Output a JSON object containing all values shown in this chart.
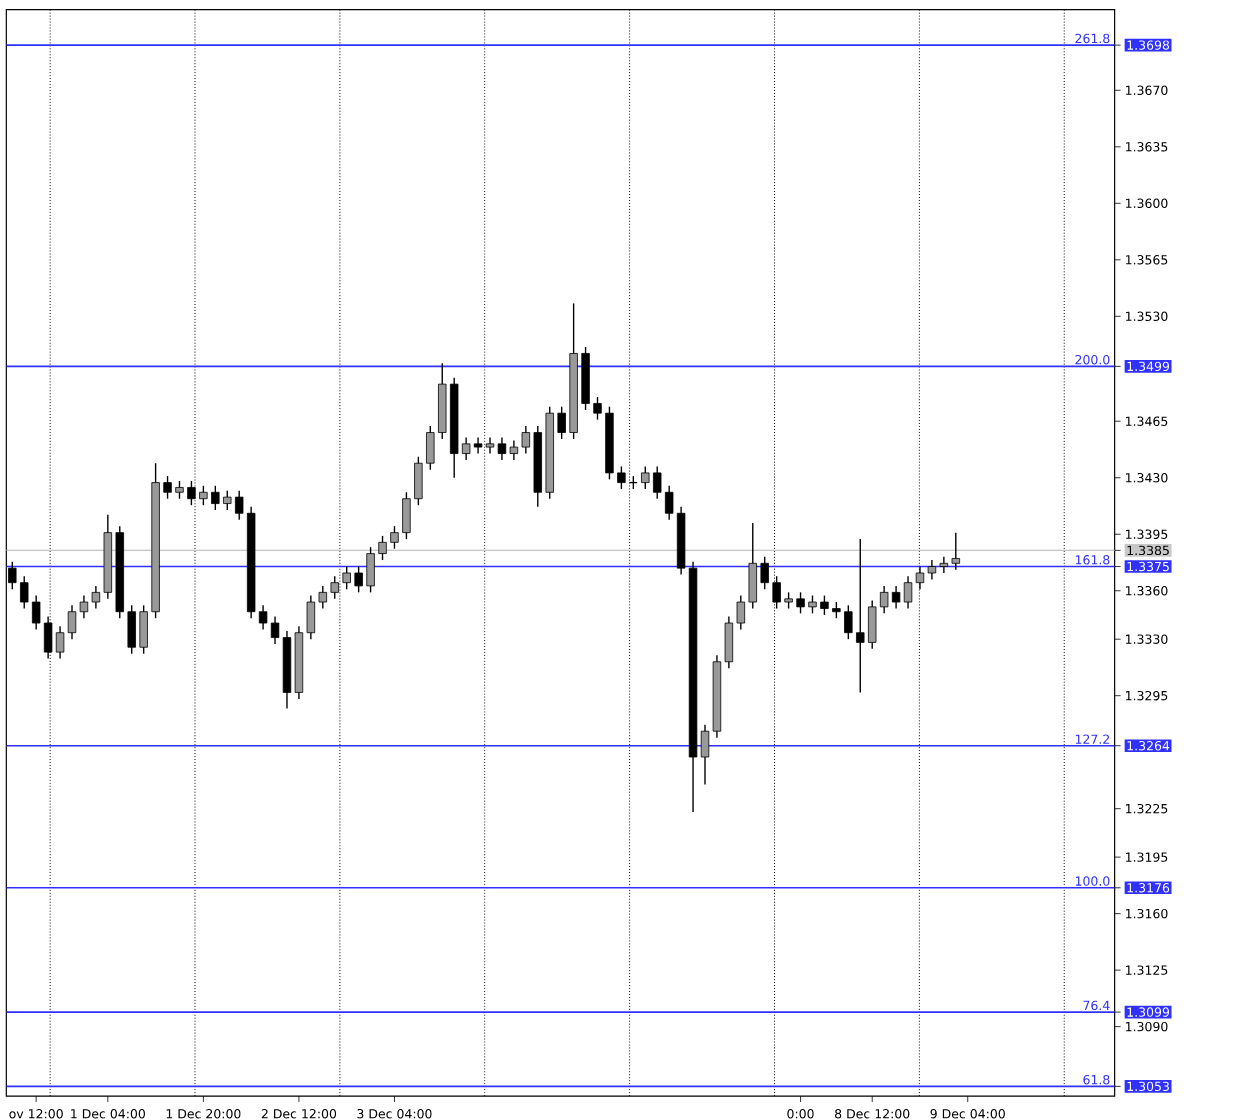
{
  "chart_data": {
    "type": "candlestick",
    "color": "#000000",
    "categories": [
      null,
      null,
      "ov 12:00",
      null,
      null,
      null,
      null,
      null,
      "1 Dec 04:00",
      null,
      null,
      null,
      null,
      null,
      null,
      null,
      "1 Dec 20:00",
      null,
      null,
      null,
      null,
      null,
      null,
      null,
      "2 Dec 12:00",
      null,
      null,
      null,
      null,
      null,
      null,
      null,
      "3 Dec 04:00",
      null,
      null,
      null,
      null,
      null,
      null,
      null,
      null,
      null,
      null,
      null,
      null,
      null,
      null,
      null,
      null,
      null,
      null,
      null,
      null,
      null,
      null,
      null,
      null,
      null,
      null,
      null,
      null,
      null,
      null,
      null,
      null,
      null,
      "0:00",
      null,
      null,
      null,
      null,
      null,
      "8 Dec 12:00",
      null,
      null,
      null,
      null,
      null,
      null,
      null,
      "9 Dec 04:00",
      null,
      null,
      null,
      null,
      null,
      null,
      null,
      null,
      null,
      null,
      null,
      null
    ],
    "ohlc": [
      [
        1.3374,
        1.3378,
        1.3361,
        1.3365
      ],
      [
        1.3365,
        1.3369,
        1.3349,
        1.3353
      ],
      [
        1.3353,
        1.3357,
        1.3336,
        1.334
      ],
      [
        1.334,
        1.3344,
        1.3318,
        1.3322
      ],
      [
        1.3322,
        1.3338,
        1.3318,
        1.3334
      ],
      [
        1.3334,
        1.3351,
        1.333,
        1.3347
      ],
      [
        1.3347,
        1.3357,
        1.3343,
        1.3353
      ],
      [
        1.3353,
        1.3363,
        1.3349,
        1.3359
      ],
      [
        1.3359,
        1.3407,
        1.3355,
        1.3396
      ],
      [
        1.3396,
        1.34,
        1.3343,
        1.3347
      ],
      [
        1.3347,
        1.3351,
        1.3321,
        1.3325
      ],
      [
        1.3325,
        1.3351,
        1.3321,
        1.3347
      ],
      [
        1.3347,
        1.3439,
        1.3343,
        1.3427
      ],
      [
        1.3427,
        1.3431,
        1.3417,
        1.3421
      ],
      [
        1.3421,
        1.3428,
        1.3417,
        1.3424
      ],
      [
        1.3424,
        1.3428,
        1.3413,
        1.3417
      ],
      [
        1.3417,
        1.3425,
        1.3413,
        1.3421
      ],
      [
        1.3421,
        1.3425,
        1.341,
        1.3414
      ],
      [
        1.3414,
        1.3422,
        1.341,
        1.3418
      ],
      [
        1.3418,
        1.3422,
        1.3404,
        1.3408
      ],
      [
        1.3408,
        1.3412,
        1.3343,
        1.3347
      ],
      [
        1.3347,
        1.3351,
        1.3336,
        1.334
      ],
      [
        1.334,
        1.3344,
        1.3327,
        1.3331
      ],
      [
        1.3331,
        1.3335,
        1.3287,
        1.3297
      ],
      [
        1.3297,
        1.3338,
        1.3293,
        1.3334
      ],
      [
        1.3334,
        1.3357,
        1.333,
        1.3353
      ],
      [
        1.3353,
        1.3363,
        1.3349,
        1.3359
      ],
      [
        1.3359,
        1.3369,
        1.3355,
        1.3365
      ],
      [
        1.3365,
        1.3375,
        1.3361,
        1.3371
      ],
      [
        1.3371,
        1.3375,
        1.3359,
        1.3363
      ],
      [
        1.3363,
        1.3387,
        1.3359,
        1.3383
      ],
      [
        1.3383,
        1.3394,
        1.3379,
        1.339
      ],
      [
        1.339,
        1.34,
        1.3386,
        1.3396
      ],
      [
        1.3396,
        1.3421,
        1.3392,
        1.3417
      ],
      [
        1.3417,
        1.3443,
        1.3413,
        1.3439
      ],
      [
        1.3439,
        1.3462,
        1.3435,
        1.3458
      ],
      [
        1.3458,
        1.3501,
        1.3454,
        1.3488
      ],
      [
        1.3488,
        1.3492,
        1.343,
        1.3445
      ],
      [
        1.3445,
        1.3455,
        1.3441,
        1.3451
      ],
      [
        1.3451,
        1.3455,
        1.3445,
        1.3449
      ],
      [
        1.3449,
        1.3455,
        1.3445,
        1.3451
      ],
      [
        1.3451,
        1.3455,
        1.3441,
        1.3445
      ],
      [
        1.3445,
        1.3453,
        1.3441,
        1.3449
      ],
      [
        1.3449,
        1.3462,
        1.3445,
        1.3458
      ],
      [
        1.3458,
        1.3462,
        1.3412,
        1.3421
      ],
      [
        1.3421,
        1.3474,
        1.3417,
        1.347
      ],
      [
        1.347,
        1.3474,
        1.3454,
        1.3458
      ],
      [
        1.3458,
        1.3538,
        1.3454,
        1.3507
      ],
      [
        1.3507,
        1.3511,
        1.3472,
        1.3476
      ],
      [
        1.3476,
        1.348,
        1.3466,
        1.347
      ],
      [
        1.347,
        1.3474,
        1.3429,
        1.3433
      ],
      [
        1.3433,
        1.3437,
        1.3423,
        1.3427
      ],
      [
        1.3427,
        1.3431,
        1.3423,
        1.3427
      ],
      [
        1.3427,
        1.3437,
        1.3423,
        1.3433
      ],
      [
        1.3433,
        1.3437,
        1.3417,
        1.3421
      ],
      [
        1.3421,
        1.3425,
        1.3404,
        1.3408
      ],
      [
        1.3408,
        1.3412,
        1.337,
        1.3374
      ],
      [
        1.3374,
        1.3378,
        1.3223,
        1.3257
      ],
      [
        1.3257,
        1.3277,
        1.324,
        1.3273
      ],
      [
        1.3273,
        1.332,
        1.3269,
        1.3316
      ],
      [
        1.3316,
        1.3344,
        1.3312,
        1.334
      ],
      [
        1.334,
        1.3357,
        1.3336,
        1.3353
      ],
      [
        1.3353,
        1.3402,
        1.3349,
        1.3377
      ],
      [
        1.3377,
        1.3381,
        1.3361,
        1.3365
      ],
      [
        1.3365,
        1.3369,
        1.3349,
        1.3353
      ],
      [
        1.3353,
        1.3359,
        1.3349,
        1.3355
      ],
      [
        1.3355,
        1.3359,
        1.3346,
        1.335
      ],
      [
        1.335,
        1.3357,
        1.3346,
        1.3353
      ],
      [
        1.3353,
        1.3357,
        1.3345,
        1.3349
      ],
      [
        1.3349,
        1.3353,
        1.3343,
        1.3347
      ],
      [
        1.3347,
        1.3351,
        1.333,
        1.3334
      ],
      [
        1.3334,
        1.3392,
        1.3297,
        1.3328
      ],
      [
        1.3328,
        1.3354,
        1.3324,
        1.335
      ],
      [
        1.335,
        1.3363,
        1.3346,
        1.3359
      ],
      [
        1.3359,
        1.3363,
        1.3349,
        1.3353
      ],
      [
        1.3353,
        1.3369,
        1.3349,
        1.3365
      ],
      [
        1.3365,
        1.3375,
        1.3361,
        1.3371
      ],
      [
        1.3371,
        1.3379,
        1.3367,
        1.3375
      ],
      [
        1.3375,
        1.3381,
        1.3371,
        1.3377
      ],
      [
        1.3377,
        1.3396,
        1.3373,
        1.338
      ],
      null,
      null,
      null,
      null,
      null,
      null,
      null,
      null,
      null,
      null,
      null,
      null,
      null
    ],
    "ylim": [
      1.3047,
      1.372
    ],
    "yticks": [
      {
        "value": 1.3698,
        "label": "1.3698"
      },
      {
        "value": 1.367,
        "label": "1.3670"
      },
      {
        "value": 1.3635,
        "label": "1.3635"
      },
      {
        "value": 1.36,
        "label": "1.3600"
      },
      {
        "value": 1.3565,
        "label": "1.3565"
      },
      {
        "value": 1.353,
        "label": "1.3530"
      },
      {
        "value": 1.3499,
        "label": "1.3499"
      },
      {
        "value": 1.3465,
        "label": "1.3465"
      },
      {
        "value": 1.343,
        "label": "1.3430"
      },
      {
        "value": 1.3395,
        "label": "1.3395"
      },
      {
        "value": 1.3385,
        "label": "1.3385"
      },
      {
        "value": 1.3375,
        "label": "1.3375"
      },
      {
        "value": 1.336,
        "label": "1.3360"
      },
      {
        "value": 1.333,
        "label": "1.3330"
      },
      {
        "value": 1.3295,
        "label": "1.3295"
      },
      {
        "value": 1.3264,
        "label": "1.3264"
      },
      {
        "value": 1.3225,
        "label": "1.3225"
      },
      {
        "value": 1.3195,
        "label": "1.3195"
      },
      {
        "value": 1.3176,
        "label": "1.3176"
      },
      {
        "value": 1.316,
        "label": "1.3160"
      },
      {
        "value": 1.3125,
        "label": "1.3125"
      },
      {
        "value": 1.3099,
        "label": "1.3099"
      },
      {
        "value": 1.309,
        "label": "1.3090"
      },
      {
        "value": 1.3053,
        "label": "1.3053"
      }
    ],
    "annotations": [
      {
        "text": "261.8",
        "y": 1.3698
      },
      {
        "text": "200.0",
        "y": 1.3499
      },
      {
        "text": "161.8",
        "y": 1.3375
      },
      {
        "text": "127.2",
        "y": 1.3264
      },
      {
        "text": "100.0",
        "y": 1.3176
      },
      {
        "text": "76.4",
        "y": 1.3099
      },
      {
        "text": "61.8",
        "y": 1.3053
      }
    ],
    "ref_lines": [
      {
        "axis": "y",
        "value": 1.3698,
        "color": "#3030ff"
      },
      {
        "axis": "y",
        "value": 1.3499,
        "color": "#3030ff"
      },
      {
        "axis": "y",
        "value": 1.3375,
        "color": "#3030ff"
      },
      {
        "axis": "y",
        "value": 1.3264,
        "color": "#3030ff"
      },
      {
        "axis": "y",
        "value": 1.3176,
        "color": "#3030ff"
      },
      {
        "axis": "y",
        "value": 1.3099,
        "color": "#3030ff"
      },
      {
        "axis": "y",
        "value": 1.3053,
        "color": "#3030ff"
      },
      {
        "axis": "y",
        "value": 1.3385,
        "color": "#c8c8c8"
      }
    ],
    "grid": "x"
  }
}
